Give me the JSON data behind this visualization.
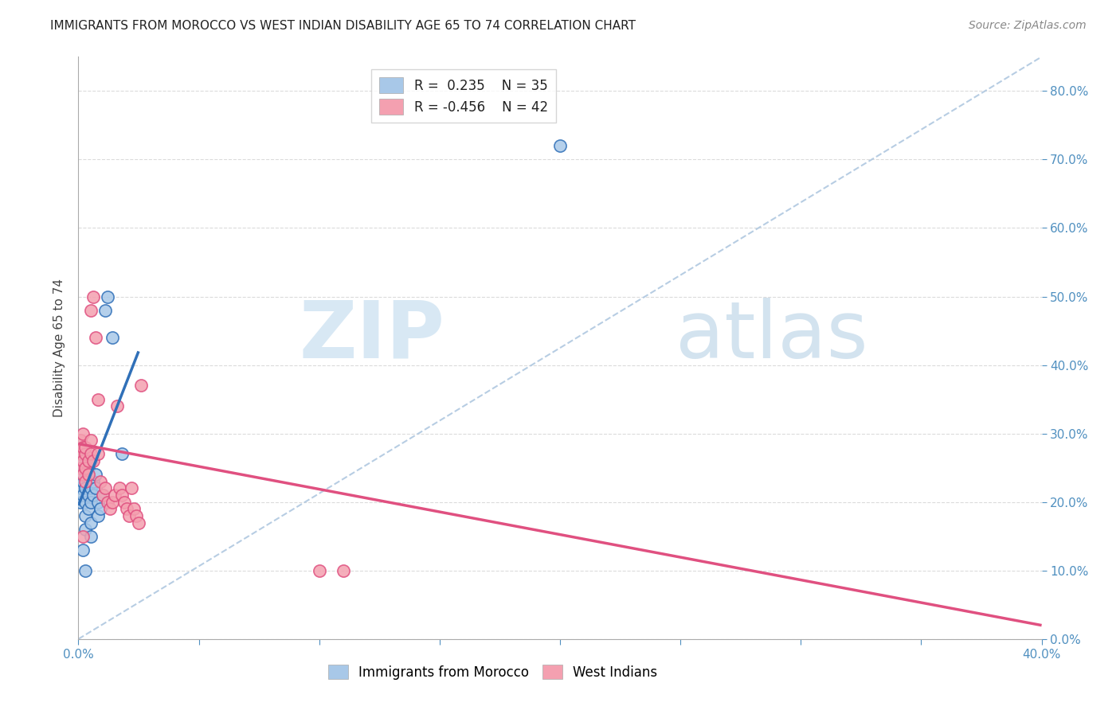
{
  "title": "IMMIGRANTS FROM MOROCCO VS WEST INDIAN DISABILITY AGE 65 TO 74 CORRELATION CHART",
  "source": "Source: ZipAtlas.com",
  "ylabel": "Disability Age 65 to 74",
  "morocco_r": 0.235,
  "morocco_n": 35,
  "westindian_r": -0.456,
  "westindian_n": 42,
  "morocco_dot_color": "#a8c8e8",
  "westindian_dot_color": "#f4a0b0",
  "morocco_line_color": "#3070b8",
  "westindian_line_color": "#e05080",
  "dashed_line_color": "#b0c8e0",
  "watermark_zip_color": "#c8dff0",
  "watermark_atlas_color": "#a8c8e0",
  "background_color": "#ffffff",
  "grid_color": "#d8d8d8",
  "tick_color": "#5090c0",
  "xlim": [
    0.0,
    0.4
  ],
  "ylim": [
    0.0,
    0.85
  ],
  "morocco_line_x0": 0.0,
  "morocco_line_y0": 0.195,
  "morocco_line_x1": 0.025,
  "morocco_line_y1": 0.42,
  "westindian_line_x0": 0.0,
  "westindian_line_y0": 0.285,
  "westindian_line_x1": 0.4,
  "westindian_line_y1": 0.02,
  "dashed_line_x0": 0.0,
  "dashed_line_y0": 0.0,
  "dashed_line_x1": 0.4,
  "dashed_line_y1": 0.85,
  "morocco_points_x": [
    0.001,
    0.001,
    0.001,
    0.002,
    0.002,
    0.002,
    0.002,
    0.003,
    0.003,
    0.003,
    0.003,
    0.003,
    0.004,
    0.004,
    0.004,
    0.005,
    0.005,
    0.005,
    0.005,
    0.005,
    0.006,
    0.006,
    0.007,
    0.007,
    0.008,
    0.008,
    0.009,
    0.01,
    0.011,
    0.012,
    0.014,
    0.018,
    0.2,
    0.002,
    0.003
  ],
  "morocco_points_y": [
    0.22,
    0.24,
    0.2,
    0.23,
    0.21,
    0.26,
    0.24,
    0.25,
    0.22,
    0.2,
    0.18,
    0.16,
    0.25,
    0.21,
    0.19,
    0.26,
    0.22,
    0.2,
    0.17,
    0.15,
    0.23,
    0.21,
    0.24,
    0.22,
    0.2,
    0.18,
    0.19,
    0.21,
    0.48,
    0.5,
    0.44,
    0.27,
    0.72,
    0.13,
    0.1
  ],
  "westindian_points_x": [
    0.001,
    0.001,
    0.001,
    0.002,
    0.002,
    0.002,
    0.002,
    0.003,
    0.003,
    0.003,
    0.003,
    0.004,
    0.004,
    0.005,
    0.005,
    0.005,
    0.006,
    0.006,
    0.007,
    0.008,
    0.008,
    0.009,
    0.01,
    0.011,
    0.012,
    0.013,
    0.014,
    0.015,
    0.016,
    0.017,
    0.018,
    0.019,
    0.02,
    0.021,
    0.022,
    0.023,
    0.024,
    0.025,
    0.026,
    0.002,
    0.1,
    0.11
  ],
  "westindian_points_y": [
    0.25,
    0.27,
    0.29,
    0.26,
    0.24,
    0.28,
    0.3,
    0.27,
    0.25,
    0.23,
    0.28,
    0.26,
    0.24,
    0.29,
    0.27,
    0.48,
    0.26,
    0.5,
    0.44,
    0.35,
    0.27,
    0.23,
    0.21,
    0.22,
    0.2,
    0.19,
    0.2,
    0.21,
    0.34,
    0.22,
    0.21,
    0.2,
    0.19,
    0.18,
    0.22,
    0.19,
    0.18,
    0.17,
    0.37,
    0.15,
    0.1,
    0.1
  ]
}
